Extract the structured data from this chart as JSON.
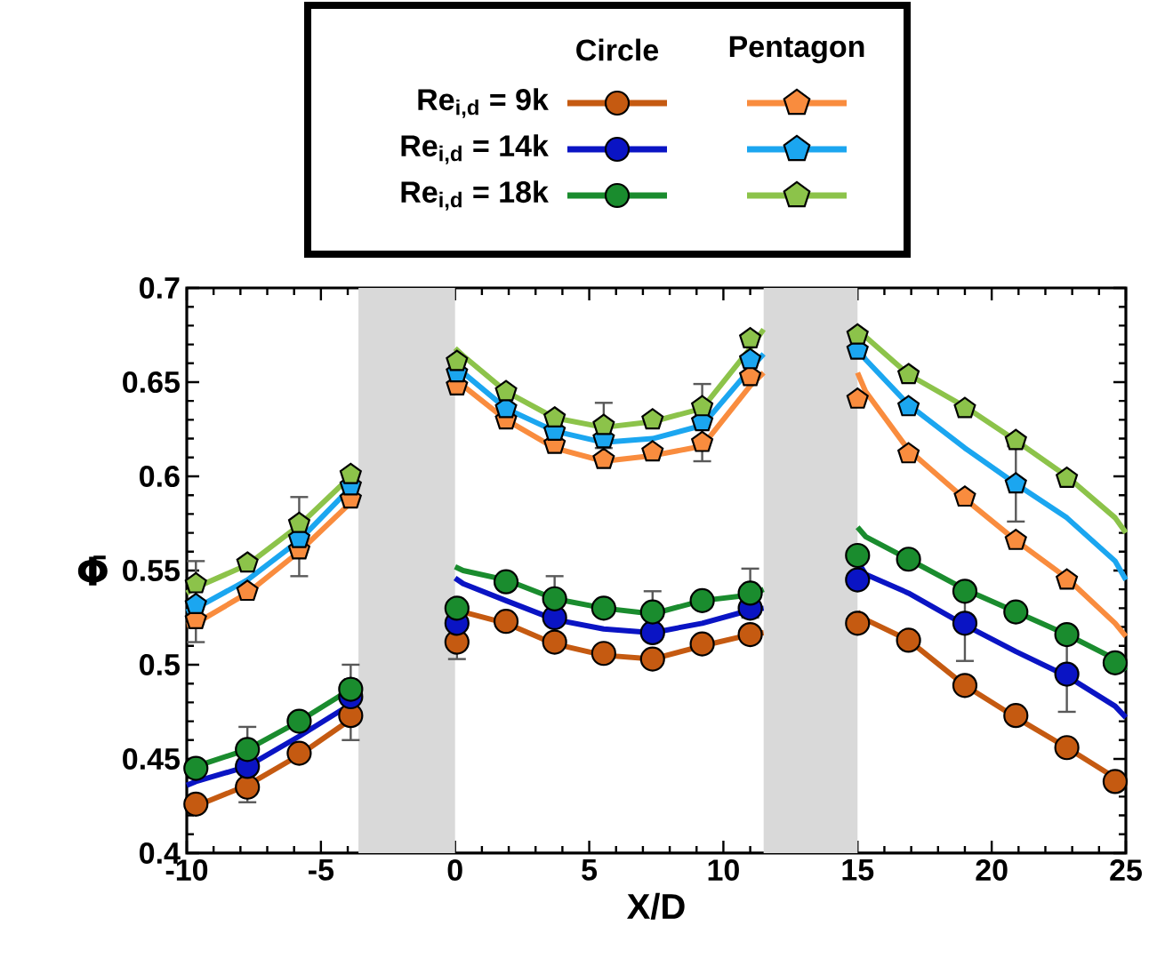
{
  "chart_data": {
    "type": "line",
    "xlabel": "X/D",
    "ylabel": "Φ̄",
    "xlim": [
      -10,
      25
    ],
    "xticks": [
      -10,
      -5,
      0,
      5,
      10,
      15,
      20,
      25
    ],
    "ylim": [
      0.4,
      0.7
    ],
    "yticks": [
      0.4,
      0.45,
      0.5,
      0.55,
      0.6,
      0.65,
      0.7
    ],
    "legend": "top",
    "annotations": [
      "Circle",
      "Pentagon"
    ],
    "bands": [
      {
        "axis": "x",
        "from": -3.6,
        "to": 0,
        "color": "#d9d9d9"
      },
      {
        "axis": "x",
        "from": 11.5,
        "to": 15,
        "color": "#d9d9d9"
      }
    ],
    "series": [
      {
        "color": "#c55a11",
        "x": [
          -10,
          -9.66,
          -7.74,
          -5.81,
          -3.89,
          -3.6,
          -1.8,
          0,
          0.3,
          1.9,
          3.71,
          5.54,
          7.36,
          9.21,
          11.0,
          11.5,
          13,
          15,
          15.3,
          16.9,
          19.0,
          20.9,
          22.8,
          24.6,
          25
        ],
        "values": [
          0.423,
          0.425,
          0.436,
          0.452,
          0.471,
          0.476,
          null,
          0.535,
          0.528,
          0.522,
          0.511,
          0.505,
          0.503,
          0.51,
          0.516,
          0.517,
          null,
          0.528,
          0.524,
          0.513,
          0.489,
          0.472,
          0.456,
          0.44,
          0.435
        ]
      },
      {
        "color": "#0a14c4",
        "x": [
          -10,
          -9.66,
          -7.74,
          -5.81,
          -3.89,
          -3.6,
          -1.8,
          0,
          0.3,
          1.9,
          3.71,
          5.54,
          7.36,
          9.21,
          11.0,
          11.5,
          13,
          15,
          15.3,
          16.9,
          19.0,
          20.9,
          22.8,
          24.6,
          25
        ],
        "values": [
          0.436,
          0.438,
          0.446,
          0.462,
          0.479,
          0.482,
          null,
          0.546,
          0.543,
          0.534,
          0.524,
          0.519,
          0.517,
          0.522,
          0.529,
          0.53,
          null,
          0.555,
          0.548,
          0.538,
          0.521,
          0.507,
          0.494,
          0.478,
          0.472
        ]
      },
      {
        "color": "#1a8c2e",
        "x": [
          -10,
          -9.66,
          -7.74,
          -5.81,
          -3.89,
          -3.6,
          -1.8,
          0,
          0.3,
          1.9,
          3.71,
          5.54,
          7.36,
          9.21,
          11.0,
          11.5,
          13,
          15,
          15.3,
          16.9,
          19.0,
          20.9,
          22.8,
          24.6,
          25
        ],
        "values": [
          0.443,
          0.446,
          0.455,
          0.47,
          0.487,
          0.49,
          null,
          0.552,
          0.55,
          0.545,
          0.535,
          0.53,
          0.527,
          0.534,
          0.537,
          0.54,
          null,
          0.573,
          0.568,
          0.556,
          0.54,
          0.528,
          0.516,
          0.503,
          0.497
        ]
      },
      {
        "color": "#f98c3e",
        "x": [
          -10,
          -9.66,
          -7.74,
          -5.81,
          -3.89,
          -3.6,
          -1.8,
          0,
          0.3,
          1.9,
          3.71,
          5.54,
          7.36,
          9.21,
          11.0,
          11.5,
          13,
          15,
          15.3,
          16.9,
          19.0,
          20.9,
          22.8,
          24.6,
          25
        ],
        "values": [
          0.521,
          0.522,
          0.538,
          0.56,
          0.586,
          0.59,
          null,
          0.652,
          0.648,
          0.63,
          0.615,
          0.608,
          0.611,
          0.616,
          0.648,
          0.655,
          null,
          0.655,
          0.645,
          0.614,
          0.588,
          0.566,
          0.546,
          0.522,
          0.515
        ]
      },
      {
        "color": "#1ba6f0",
        "x": [
          -10,
          -9.66,
          -7.74,
          -5.81,
          -3.89,
          -3.6,
          -1.8,
          0,
          0.3,
          1.9,
          3.71,
          5.54,
          7.36,
          9.21,
          11.0,
          11.5,
          13,
          15,
          15.3,
          16.9,
          19.0,
          20.9,
          22.8,
          24.6,
          25
        ],
        "values": [
          0.528,
          0.53,
          0.545,
          0.566,
          0.594,
          0.598,
          null,
          0.66,
          0.655,
          0.636,
          0.624,
          0.618,
          0.62,
          0.627,
          0.657,
          0.665,
          null,
          0.668,
          0.662,
          0.638,
          0.615,
          0.596,
          0.578,
          0.555,
          0.545
        ]
      },
      {
        "color": "#8cc34a",
        "x": [
          -10,
          -9.66,
          -7.74,
          -5.81,
          -3.89,
          -3.6,
          -1.8,
          0,
          0.3,
          1.9,
          3.71,
          5.54,
          7.36,
          9.21,
          11.0,
          11.5,
          13,
          15,
          15.3,
          16.9,
          19.0,
          20.9,
          22.8,
          24.6,
          25
        ],
        "values": [
          0.538,
          0.541,
          0.553,
          0.574,
          0.6,
          0.604,
          null,
          0.668,
          0.664,
          0.645,
          0.631,
          0.626,
          0.629,
          0.636,
          0.668,
          0.678,
          null,
          0.676,
          0.674,
          0.654,
          0.637,
          0.619,
          0.6,
          0.578,
          0.57
        ]
      },
      {
        "type": "scatter",
        "name": "Re$_{i,d}$ = 9k",
        "marker": "circle",
        "color": "#c55a11",
        "x": [
          -9.66,
          -7.74,
          -5.81,
          -3.89,
          0.07,
          1.9,
          3.71,
          5.54,
          7.36,
          9.21,
          11.0,
          15.0,
          16.9,
          19.0,
          20.9,
          22.8,
          24.6
        ],
        "values": [
          0.426,
          0.435,
          0.453,
          0.473,
          0.512,
          0.523,
          0.512,
          0.506,
          0.503,
          0.511,
          0.516,
          0.522,
          0.513,
          0.489,
          0.473,
          0.456,
          0.438
        ],
        "errors": [
          null,
          null,
          null,
          null,
          0.009,
          null,
          null,
          null,
          null,
          null,
          null,
          null,
          null,
          null,
          null,
          null,
          null
        ]
      },
      {
        "type": "scatter",
        "name": "Re$_{i,d}$ = 14k",
        "marker": "circle",
        "color": "#0a14c4",
        "x": [
          -7.74,
          -3.89,
          0.07,
          3.71,
          7.36,
          11.0,
          15.0,
          19.0,
          22.8
        ],
        "values": [
          0.446,
          0.483,
          0.522,
          0.525,
          0.517,
          0.53,
          0.545,
          0.522,
          0.495
        ],
        "errors": [
          [
            0.427,
            0.467
          ],
          [
            0.46,
            0.5
          ],
          null,
          null,
          null,
          null,
          null,
          0.02,
          0.02
        ]
      },
      {
        "type": "scatter",
        "name": "Re$_{i,d}$ = 18k",
        "marker": "circle",
        "color": "#1a8c2e",
        "x": [
          -9.66,
          -7.74,
          -5.81,
          -3.89,
          0.07,
          1.9,
          3.71,
          5.54,
          7.36,
          9.21,
          11.0,
          15.0,
          16.9,
          19.0,
          20.9,
          22.8,
          24.6
        ],
        "values": [
          0.445,
          0.455,
          0.47,
          0.487,
          0.53,
          0.544,
          0.535,
          0.53,
          0.528,
          0.534,
          0.538,
          0.558,
          0.556,
          0.539,
          0.528,
          0.516,
          0.501
        ],
        "errors": [
          null,
          null,
          null,
          null,
          null,
          null,
          0.012,
          null,
          0.011,
          null,
          0.013,
          null,
          null,
          null,
          null,
          null,
          null
        ]
      },
      {
        "type": "scatter",
        "color": "#f98c3e",
        "x": [
          -9.66,
          -7.74,
          -5.81,
          -3.89,
          0.07,
          1.9,
          3.71,
          5.54,
          7.36,
          9.21,
          11.0,
          15.0,
          16.9,
          19.0,
          20.9,
          22.8
        ],
        "values": [
          0.524,
          0.539,
          0.561,
          0.588,
          0.648,
          0.63,
          0.617,
          0.609,
          0.613,
          0.618,
          0.653,
          0.641,
          0.612,
          0.589,
          0.566,
          0.545
        ]
      },
      {
        "type": "scatter",
        "color": "#1ba6f0",
        "x": [
          -9.66,
          -5.81,
          -3.89,
          0.07,
          1.9,
          3.71,
          5.54,
          9.21,
          11.0,
          15.0,
          16.9,
          20.9
        ],
        "values": [
          0.532,
          0.567,
          0.595,
          0.655,
          0.636,
          0.624,
          0.62,
          0.629,
          0.662,
          0.667,
          0.637,
          0.596
        ],
        "errors": [
          [
            0.512,
            0.555
          ],
          [
            0.547,
            0.589
          ],
          null,
          null,
          null,
          null,
          null,
          [
            0.608,
            0.649
          ],
          null,
          null,
          null,
          0.02
        ]
      },
      {
        "type": "scatter",
        "color": "#8cc34a",
        "x": [
          -9.66,
          -7.74,
          -5.81,
          -3.89,
          0.07,
          1.9,
          3.71,
          5.54,
          7.36,
          9.21,
          11.0,
          15.0,
          16.9,
          19.0,
          20.9,
          22.8
        ],
        "values": [
          0.543,
          0.554,
          0.575,
          0.601,
          0.661,
          0.645,
          0.631,
          0.627,
          0.63,
          0.637,
          0.673,
          0.675,
          0.654,
          0.636,
          0.619,
          0.599
        ],
        "errors": [
          null,
          null,
          null,
          null,
          null,
          null,
          null,
          0.012,
          null,
          null,
          null,
          null,
          null,
          null,
          null,
          null
        ]
      }
    ]
  }
}
